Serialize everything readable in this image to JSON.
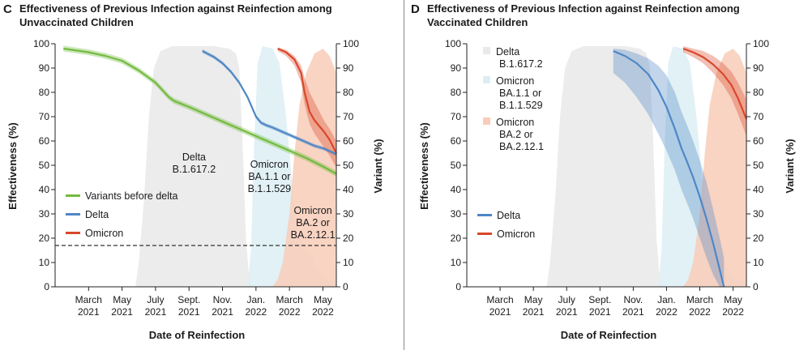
{
  "colors": {
    "green": "#73bb3f",
    "blue": "#4f87c6",
    "red": "#d9472b",
    "delta_area": "#e9e9e9",
    "ba1_area": "#dceef3",
    "ba2_area": "#f8cdb9",
    "divider": "#888888"
  },
  "chart_data": [
    {
      "type": "line",
      "letter": "C",
      "title_lines": [
        "Effectiveness of Previous Infection against Reinfection among",
        "Unvaccinated Children"
      ],
      "xlabel": "Date of Reinfection",
      "ylabel": "Effectiveness (%)",
      "y2label": "Variant (%)",
      "ylim": [
        0,
        100
      ],
      "yticks": [
        0,
        10,
        20,
        30,
        40,
        50,
        60,
        70,
        80,
        90,
        100
      ],
      "xlim": [
        0,
        16.8
      ],
      "xticks": [
        {
          "x": 2,
          "line1": "March",
          "line2": "2021"
        },
        {
          "x": 4,
          "line1": "May",
          "line2": "2021"
        },
        {
          "x": 6,
          "line1": "July",
          "line2": "2021"
        },
        {
          "x": 8,
          "line1": "Sept.",
          "line2": "2021"
        },
        {
          "x": 10,
          "line1": "Nov.",
          "line2": "2021"
        },
        {
          "x": 12,
          "line1": "Jan.",
          "line2": "2022"
        },
        {
          "x": 14,
          "line1": "March",
          "line2": "2022"
        },
        {
          "x": 16,
          "line1": "May",
          "line2": "2022"
        }
      ],
      "reference_line": 17,
      "variant_areas": [
        {
          "name": "Delta",
          "color": "delta_area",
          "points": [
            [
              4.8,
              0
            ],
            [
              5.0,
              10
            ],
            [
              5.3,
              35
            ],
            [
              5.6,
              70
            ],
            [
              5.9,
              90
            ],
            [
              6.3,
              97
            ],
            [
              7.0,
              99
            ],
            [
              9.5,
              99
            ],
            [
              10.4,
              98
            ],
            [
              10.8,
              96
            ],
            [
              11.0,
              90
            ],
            [
              11.2,
              60
            ],
            [
              11.4,
              20
            ],
            [
              11.6,
              3
            ],
            [
              11.8,
              0
            ]
          ]
        },
        {
          "name": "Omicron BA.1.1 or B.1.1.529",
          "color": "ba1_area",
          "points": [
            [
              11.5,
              0
            ],
            [
              11.7,
              15
            ],
            [
              11.9,
              60
            ],
            [
              12.1,
              92
            ],
            [
              12.4,
              99
            ],
            [
              13.0,
              98
            ],
            [
              13.4,
              92
            ],
            [
              13.8,
              70
            ],
            [
              14.2,
              40
            ],
            [
              14.5,
              22
            ],
            [
              14.8,
              18
            ],
            [
              15.2,
              14
            ],
            [
              15.6,
              8
            ],
            [
              16.0,
              4
            ],
            [
              16.8,
              2
            ],
            [
              16.8,
              0
            ]
          ]
        },
        {
          "name": "Omicron BA.2 or BA.2.12.1",
          "color": "ba2_area",
          "points": [
            [
              13.0,
              0
            ],
            [
              13.3,
              3
            ],
            [
              13.6,
              10
            ],
            [
              14.0,
              30
            ],
            [
              14.3,
              55
            ],
            [
              14.6,
              75
            ],
            [
              15.0,
              88
            ],
            [
              15.5,
              96
            ],
            [
              16.0,
              98
            ],
            [
              16.4,
              95
            ],
            [
              16.8,
              88
            ],
            [
              16.8,
              0
            ]
          ]
        }
      ],
      "series": [
        {
          "name": "Variants before delta",
          "color": "green",
          "band": 1.2,
          "x": [
            0.5,
            2,
            3,
            4,
            5,
            6,
            6.8,
            7.1,
            8,
            9,
            10,
            11,
            12,
            13,
            14,
            15,
            16,
            16.8
          ],
          "y": [
            98,
            96.5,
            95,
            93,
            89,
            84,
            78,
            76.5,
            74,
            71,
            68,
            65,
            62,
            59,
            56,
            53,
            49.5,
            46.5
          ]
        },
        {
          "name": "Delta",
          "color": "blue",
          "band": 0.8,
          "x": [
            8.8,
            9.5,
            10,
            10.5,
            11,
            11.5,
            12,
            12.3,
            12.6,
            13,
            13.5,
            14,
            14.5,
            15,
            15.5,
            16,
            16.5,
            16.8
          ],
          "y": [
            97,
            94.5,
            92,
            88.5,
            84,
            78,
            70,
            67.5,
            66.5,
            65.5,
            64,
            62.5,
            61,
            59.5,
            58,
            57,
            55.5,
            54.5
          ]
        },
        {
          "name": "Omicron",
          "color": "red",
          "band": 4,
          "x": [
            13.3,
            13.8,
            14.3,
            14.7,
            14.9,
            15.2,
            15.5,
            15.8,
            16.1,
            16.4,
            16.8
          ],
          "y": [
            98,
            96.5,
            93.5,
            88,
            80,
            72,
            68.5,
            66,
            63.5,
            60.5,
            55
          ]
        }
      ],
      "series_bands": [
        {
          "series": "Omicron",
          "upper": [
            98.5,
            97.5,
            95,
            91,
            86,
            80,
            76,
            72,
            68,
            65,
            60
          ],
          "lower": [
            97,
            95,
            91,
            84,
            75,
            67,
            63,
            60,
            57,
            54,
            49
          ]
        }
      ],
      "annotations": [
        {
          "lines": [
            "Delta",
            "B.1.617.2"
          ],
          "x": 8.3,
          "y": 52
        },
        {
          "lines": [
            "Omicron",
            "BA.1.1 or",
            "B.1.1.529"
          ],
          "x": 12.8,
          "y": 49
        },
        {
          "lines": [
            "Omicron",
            "BA.2 or",
            "BA.2.12.1"
          ],
          "x": 15.4,
          "y": 30
        }
      ],
      "legend": {
        "position": "lower-left",
        "items": [
          "Variants before delta",
          "Delta",
          "Omicron"
        ]
      }
    },
    {
      "type": "line",
      "letter": "D",
      "title_lines": [
        "Effectiveness of Previous Infection against Reinfection among",
        "Vaccinated Children"
      ],
      "xlabel": "Date of Reinfection",
      "ylabel": "Effectiveness (%)",
      "y2label": "Variant (%)",
      "ylim": [
        0,
        100
      ],
      "yticks": [
        0,
        10,
        20,
        30,
        40,
        50,
        60,
        70,
        80,
        90,
        100
      ],
      "xlim": [
        0,
        16.8
      ],
      "xticks": [
        {
          "x": 2,
          "line1": "March",
          "line2": "2021"
        },
        {
          "x": 4,
          "line1": "May",
          "line2": "2021"
        },
        {
          "x": 6,
          "line1": "July",
          "line2": "2021"
        },
        {
          "x": 8,
          "line1": "Sept.",
          "line2": "2021"
        },
        {
          "x": 10,
          "line1": "Nov.",
          "line2": "2021"
        },
        {
          "x": 12,
          "line1": "Jan.",
          "line2": "2022"
        },
        {
          "x": 14,
          "line1": "March",
          "line2": "2022"
        },
        {
          "x": 16,
          "line1": "May",
          "line2": "2022"
        }
      ],
      "reference_line": null,
      "variant_areas": [
        {
          "name": "Delta",
          "color": "delta_area",
          "points": [
            [
              4.8,
              0
            ],
            [
              5.0,
              10
            ],
            [
              5.3,
              35
            ],
            [
              5.6,
              70
            ],
            [
              5.9,
              90
            ],
            [
              6.3,
              97
            ],
            [
              7.0,
              99
            ],
            [
              9.5,
              99
            ],
            [
              10.4,
              98
            ],
            [
              10.8,
              96
            ],
            [
              11.0,
              90
            ],
            [
              11.2,
              60
            ],
            [
              11.4,
              20
            ],
            [
              11.6,
              3
            ],
            [
              11.8,
              0
            ]
          ]
        },
        {
          "name": "Omicron BA.1.1 or B.1.1.529",
          "color": "ba1_area",
          "points": [
            [
              11.5,
              0
            ],
            [
              11.7,
              15
            ],
            [
              11.9,
              60
            ],
            [
              12.1,
              92
            ],
            [
              12.4,
              99
            ],
            [
              13.0,
              98
            ],
            [
              13.4,
              92
            ],
            [
              13.8,
              70
            ],
            [
              14.2,
              40
            ],
            [
              14.5,
              22
            ],
            [
              14.8,
              18
            ],
            [
              15.2,
              14
            ],
            [
              15.6,
              8
            ],
            [
              16.0,
              4
            ],
            [
              16.8,
              2
            ],
            [
              16.8,
              0
            ]
          ]
        },
        {
          "name": "Omicron BA.2 or BA.2.12.1",
          "color": "ba2_area",
          "points": [
            [
              13.0,
              0
            ],
            [
              13.3,
              3
            ],
            [
              13.6,
              10
            ],
            [
              14.0,
              30
            ],
            [
              14.3,
              55
            ],
            [
              14.6,
              75
            ],
            [
              15.0,
              88
            ],
            [
              15.5,
              96
            ],
            [
              16.0,
              98
            ],
            [
              16.4,
              95
            ],
            [
              16.8,
              88
            ],
            [
              16.8,
              0
            ]
          ]
        }
      ],
      "series": [
        {
          "name": "Delta",
          "color": "blue",
          "band": 0,
          "x": [
            8.8,
            9.5,
            10.2,
            10.9,
            11.5,
            12.0,
            12.5,
            12.9,
            13.2,
            13.6,
            14.0,
            14.4,
            14.8,
            15.2,
            15.45
          ],
          "y": [
            97,
            95,
            92,
            87.5,
            81,
            74,
            65,
            57,
            52,
            45,
            37,
            28,
            18,
            7,
            0
          ]
        },
        {
          "name": "Omicron",
          "color": "red",
          "band": 0,
          "x": [
            13.0,
            13.6,
            14.2,
            14.8,
            15.4,
            15.9,
            16.3,
            16.8
          ],
          "y": [
            98,
            96.5,
            94.5,
            91.5,
            87.5,
            83,
            77.5,
            69
          ]
        }
      ],
      "series_bands": [
        {
          "series": "Delta",
          "upper": [
            98,
            97.5,
            96,
            94,
            91,
            87,
            80,
            72,
            67,
            60,
            52,
            43,
            32,
            20,
            12
          ],
          "lower": [
            88,
            84,
            78,
            71,
            63,
            56,
            48,
            40,
            35,
            28,
            20,
            12,
            5,
            0,
            0
          ]
        },
        {
          "series": "Omicron",
          "upper": [
            99,
            98,
            97,
            95,
            92,
            88.5,
            84,
            77
          ],
          "lower": [
            96.5,
            94.5,
            92,
            88,
            83,
            77.5,
            71,
            62
          ]
        }
      ],
      "annotations": [],
      "legend": {
        "position": "lower-left",
        "items": [
          "Delta",
          "Omicron"
        ]
      },
      "area_legend": {
        "position": "top-left",
        "items": [
          {
            "lines": [
              "Delta",
              "B.1.617.2"
            ],
            "color": "delta_area"
          },
          {
            "lines": [
              "Omicron",
              "BA.1.1 or",
              "B.1.1.529"
            ],
            "color": "ba1_area"
          },
          {
            "lines": [
              "Omicron",
              "BA.2 or",
              "BA.2.12.1"
            ],
            "color": "ba2_area"
          }
        ]
      }
    }
  ]
}
